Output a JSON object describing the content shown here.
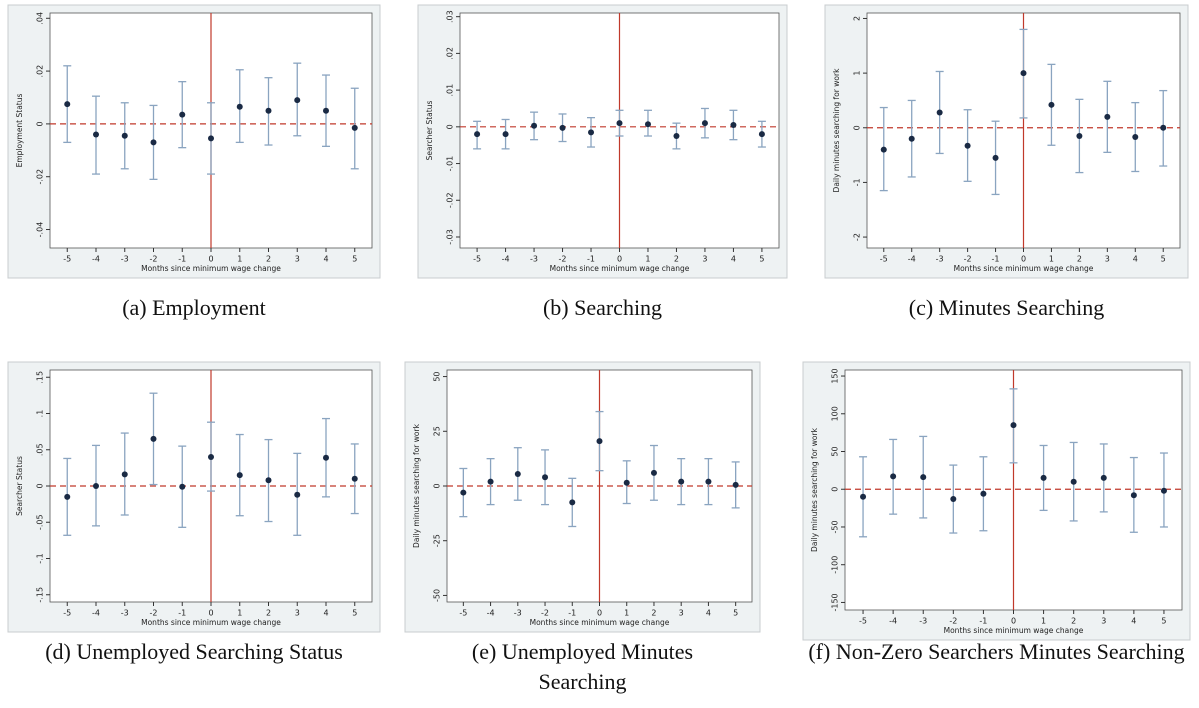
{
  "chart_data": [
    {
      "type": "errorbar",
      "caption": "(a) Employment",
      "ylabel": "Employment Status",
      "xlabel": "Months since minimum wage change",
      "x": [
        -5,
        -4,
        -3,
        -2,
        -1,
        0,
        1,
        2,
        3,
        4,
        5
      ],
      "values": [
        0.0075,
        -0.004,
        -0.0045,
        -0.007,
        0.0035,
        -0.0055,
        0.0065,
        0.005,
        0.009,
        0.005,
        -0.0015
      ],
      "lower": [
        -0.007,
        -0.019,
        -0.017,
        -0.021,
        -0.009,
        -0.019,
        -0.007,
        -0.008,
        -0.0045,
        -0.0085,
        -0.017
      ],
      "upper": [
        0.022,
        0.0105,
        0.008,
        0.007,
        0.016,
        0.008,
        0.0205,
        0.0175,
        0.023,
        0.0185,
        0.0135
      ],
      "xlim": [
        -5.6,
        5.6
      ],
      "xticks": [
        -5,
        -4,
        -3,
        -2,
        -1,
        0,
        1,
        2,
        3,
        4,
        5
      ],
      "ylim": [
        -0.047,
        0.042
      ],
      "yticks": [
        {
          "value": -0.04,
          "label": "-.04"
        },
        {
          "value": -0.02,
          "label": "-.02"
        },
        0,
        {
          "value": 0.02,
          "label": ".02"
        },
        {
          "value": 0.04,
          "label": ".04"
        }
      ],
      "hline": 0,
      "vline": 0,
      "color": "#1a2a44",
      "bar_color": "#8aa4c0",
      "ref_color": "#c0392b"
    },
    {
      "type": "errorbar",
      "caption": "(b) Searching",
      "ylabel": "Searcher Status",
      "xlabel": "Months since minimum wage change",
      "x": [
        -5,
        -4,
        -3,
        -2,
        -1,
        0,
        1,
        2,
        3,
        4,
        5
      ],
      "values": [
        -0.002,
        -0.002,
        0.0003,
        -0.0003,
        -0.0015,
        0.001,
        0.0007,
        -0.0025,
        0.001,
        0.0005,
        -0.002
      ],
      "lower": [
        -0.006,
        -0.006,
        -0.0035,
        -0.004,
        -0.0055,
        -0.0025,
        -0.0025,
        -0.006,
        -0.003,
        -0.0035,
        -0.0055
      ],
      "upper": [
        0.0015,
        0.002,
        0.004,
        0.0035,
        0.0025,
        0.0045,
        0.0045,
        0.001,
        0.005,
        0.0045,
        0.0015
      ],
      "xlim": [
        -5.6,
        5.6
      ],
      "xticks": [
        -5,
        -4,
        -3,
        -2,
        -1,
        0,
        1,
        2,
        3,
        4,
        5
      ],
      "ylim": [
        -0.033,
        0.031
      ],
      "yticks": [
        {
          "value": -0.03,
          "label": "-.03"
        },
        {
          "value": -0.02,
          "label": "-.02"
        },
        {
          "value": -0.01,
          "label": "-.01"
        },
        0,
        {
          "value": 0.01,
          "label": ".01"
        },
        {
          "value": 0.02,
          "label": ".02"
        },
        {
          "value": 0.03,
          "label": ".03"
        }
      ],
      "hline": 0,
      "vline": 0,
      "color": "#1a2a44",
      "bar_color": "#8aa4c0",
      "ref_color": "#c0392b"
    },
    {
      "type": "errorbar",
      "caption": "(c) Minutes Searching",
      "ylabel": "Daily minutes searching for work",
      "xlabel": "Months since minimum wage change",
      "x": [
        -5,
        -4,
        -3,
        -2,
        -1,
        0,
        1,
        2,
        3,
        4,
        5
      ],
      "values": [
        -0.4,
        -0.2,
        0.28,
        -0.33,
        -0.55,
        1.0,
        0.42,
        -0.15,
        0.2,
        -0.17,
        0.0
      ],
      "lower": [
        -1.15,
        -0.9,
        -0.47,
        -0.98,
        -1.22,
        0.18,
        -0.32,
        -0.82,
        -0.45,
        -0.8,
        -0.7
      ],
      "upper": [
        0.37,
        0.5,
        1.03,
        0.33,
        0.12,
        1.8,
        1.16,
        0.52,
        0.85,
        0.46,
        0.68
      ],
      "xlim": [
        -5.6,
        5.6
      ],
      "xticks": [
        -5,
        -4,
        -3,
        -2,
        -1,
        0,
        1,
        2,
        3,
        4,
        5
      ],
      "ylim": [
        -2.2,
        2.1
      ],
      "yticks": [
        -2,
        -1,
        0,
        1,
        2
      ],
      "hline": 0,
      "vline": 0,
      "color": "#1a2a44",
      "bar_color": "#8aa4c0",
      "ref_color": "#c0392b"
    },
    {
      "type": "errorbar",
      "caption": "(d) Unemployed Searching Status",
      "ylabel": "Searcher Status",
      "xlabel": "Months since minimum wage change",
      "x": [
        -5,
        -4,
        -3,
        -2,
        -1,
        0,
        1,
        2,
        3,
        4,
        5
      ],
      "values": [
        -0.015,
        0.0,
        0.016,
        0.065,
        -0.001,
        0.04,
        0.015,
        0.008,
        -0.012,
        0.039,
        0.01
      ],
      "lower": [
        -0.068,
        -0.055,
        -0.04,
        0.002,
        -0.057,
        -0.007,
        -0.041,
        -0.049,
        -0.068,
        -0.015,
        -0.038
      ],
      "upper": [
        0.038,
        0.056,
        0.073,
        0.128,
        0.055,
        0.088,
        0.071,
        0.064,
        0.045,
        0.093,
        0.058
      ],
      "xlim": [
        -5.6,
        5.6
      ],
      "xticks": [
        -5,
        -4,
        -3,
        -2,
        -1,
        0,
        1,
        2,
        3,
        4,
        5
      ],
      "ylim": [
        -0.16,
        0.16
      ],
      "yticks": [
        {
          "value": -0.15,
          "label": "-.15"
        },
        {
          "value": -0.1,
          "label": "-.1"
        },
        {
          "value": -0.05,
          "label": "-.05"
        },
        0,
        {
          "value": 0.05,
          "label": ".05"
        },
        {
          "value": 0.1,
          "label": ".1"
        },
        {
          "value": 0.15,
          "label": ".15"
        }
      ],
      "hline": 0,
      "vline": 0,
      "color": "#1a2a44",
      "bar_color": "#8aa4c0",
      "ref_color": "#c0392b"
    },
    {
      "type": "errorbar",
      "caption": "(e) Unemployed Minutes Searching",
      "ylabel": "Daily minutes searching for work",
      "xlabel": "Months since minimum wage change",
      "x": [
        -5,
        -4,
        -3,
        -2,
        -1,
        0,
        1,
        2,
        3,
        4,
        5
      ],
      "values": [
        -3,
        2,
        5.5,
        4,
        -7.5,
        20.5,
        1.5,
        6,
        2,
        2,
        0.5
      ],
      "lower": [
        -14,
        -8.5,
        -6.5,
        -8.5,
        -18.5,
        7,
        -8,
        -6.5,
        -8.5,
        -8.5,
        -10
      ],
      "upper": [
        8,
        12.5,
        17.5,
        16.5,
        3.5,
        34,
        11.5,
        18.5,
        12.5,
        12.5,
        11
      ],
      "xlim": [
        -5.6,
        5.6
      ],
      "xticks": [
        -5,
        -4,
        -3,
        -2,
        -1,
        0,
        1,
        2,
        3,
        4,
        5
      ],
      "ylim": [
        -53,
        53
      ],
      "yticks": [
        -50,
        -25,
        0,
        25,
        50
      ],
      "hline": 0,
      "vline": 0,
      "color": "#1a2a44",
      "bar_color": "#8aa4c0",
      "ref_color": "#c0392b"
    },
    {
      "type": "errorbar",
      "caption": "(f) Non-Zero Searchers Minutes Searching",
      "ylabel": "Daily minutes searching for work",
      "xlabel": "Months since minimum wage change",
      "x": [
        -5,
        -4,
        -3,
        -2,
        -1,
        0,
        1,
        2,
        3,
        4,
        5
      ],
      "values": [
        -10,
        17,
        16,
        -13,
        -6,
        85,
        15,
        10,
        15,
        -8,
        -2
      ],
      "lower": [
        -63,
        -33,
        -38,
        -58,
        -55,
        35,
        -28,
        -42,
        -30,
        -57,
        -50
      ],
      "upper": [
        43,
        66,
        70,
        32,
        43,
        133,
        58,
        62,
        60,
        42,
        48
      ],
      "xlim": [
        -5.6,
        5.6
      ],
      "xticks": [
        -5,
        -4,
        -3,
        -2,
        -1,
        0,
        1,
        2,
        3,
        4,
        5
      ],
      "ylim": [
        -160,
        158
      ],
      "yticks": [
        -150,
        -100,
        -50,
        0,
        50,
        100,
        150
      ],
      "hline": 0,
      "vline": 0,
      "color": "#1a2a44",
      "bar_color": "#8aa4c0",
      "ref_color": "#c0392b"
    }
  ]
}
